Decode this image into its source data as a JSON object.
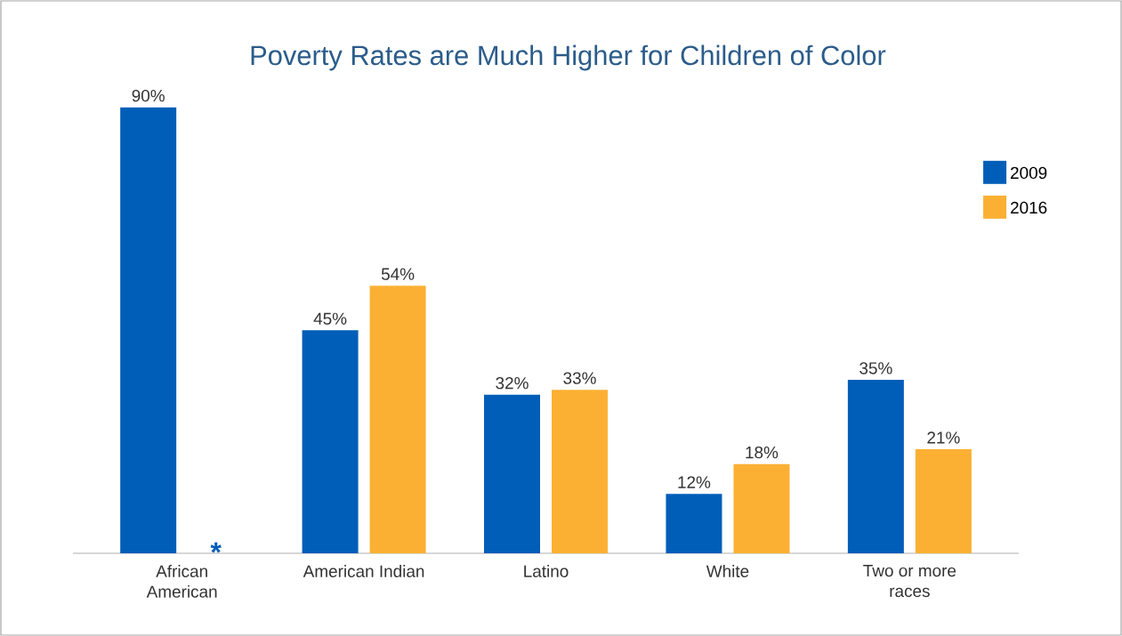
{
  "chart_data": {
    "type": "bar",
    "title": "Poverty Rates are Much Higher for Children of Color",
    "categories": [
      "African American",
      "American Indian",
      "Latino",
      "White",
      "Two or more races"
    ],
    "series": [
      {
        "name": "2009",
        "color": "#005eb8",
        "values": [
          90,
          45,
          32,
          12,
          35
        ],
        "value_labels": [
          "90%",
          "45%",
          "32%",
          "12%",
          "35%"
        ]
      },
      {
        "name": "2016",
        "color": "#fbb034",
        "values": [
          null,
          54,
          33,
          18,
          21
        ],
        "value_labels": [
          null,
          "54%",
          "33%",
          "18%",
          "21%"
        ]
      }
    ],
    "annotations": [
      "*"
    ],
    "legend": "top right"
  }
}
